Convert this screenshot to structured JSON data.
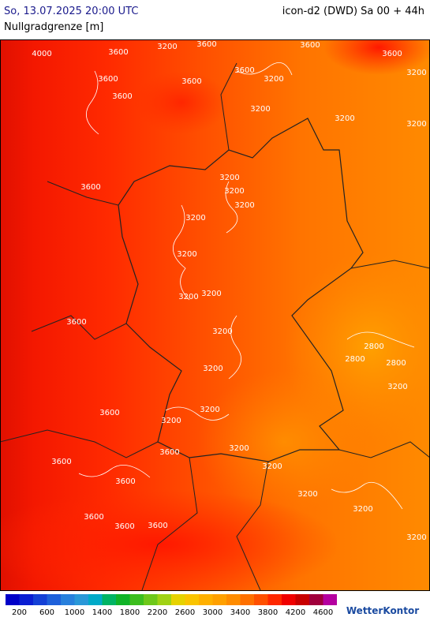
{
  "header": {
    "datetime": "So, 13.07.2025 20:00 UTC",
    "parameter": "Nullgradgrenze [m]",
    "model": "icon-d2 (DWD) Sa 00 + 44h"
  },
  "map": {
    "contour_labels": [
      4000,
      3600,
      3200,
      3600,
      3600,
      3600,
      3600,
      3600,
      3600,
      3200,
      3200,
      3600,
      3200,
      3200,
      3200,
      3600,
      3200,
      3200,
      3200,
      3200,
      3200,
      3200,
      3200,
      3600,
      2800,
      2800,
      2800,
      3200,
      3200,
      3200,
      3200,
      3600,
      3200,
      3600,
      3200,
      3600,
      3200,
      3200,
      3600,
      3600,
      3600,
      3600,
      3200,
      3200
    ]
  },
  "legend": {
    "colors": [
      "#0000c8",
      "#0a1ed2",
      "#1440d6",
      "#1e60da",
      "#2880dc",
      "#2a98d8",
      "#00aac8",
      "#00b464",
      "#10b428",
      "#3cbe1e",
      "#6ec81a",
      "#a0d214",
      "#e6d200",
      "#fac400",
      "#ffb000",
      "#ffa000",
      "#ff8c00",
      "#ff7000",
      "#ff5000",
      "#ff2800",
      "#f00000",
      "#c80000",
      "#a0003c",
      "#b400a0"
    ],
    "ticks": [
      200,
      600,
      1000,
      1400,
      1800,
      2200,
      2600,
      3000,
      3400,
      3800,
      4200,
      4600
    ]
  },
  "logo": "WetterKontor"
}
